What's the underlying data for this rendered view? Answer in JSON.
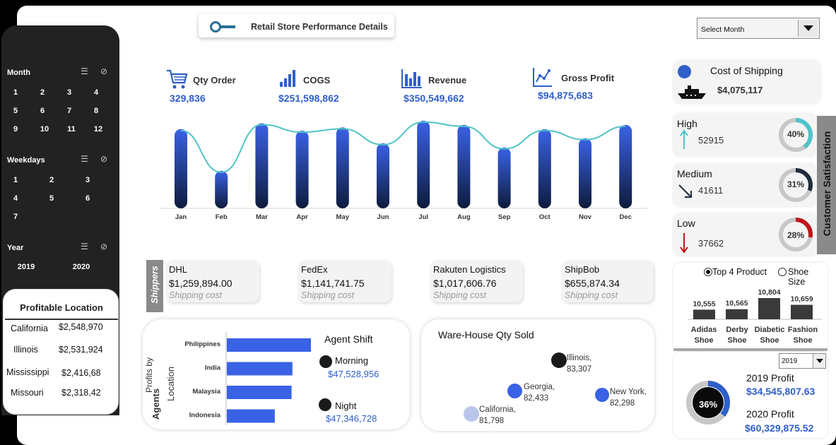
{
  "header": {
    "title": "Retail Store Performance Details",
    "month_select": "Select Month"
  },
  "slicers": {
    "month": {
      "label": "Month",
      "items": [
        "1",
        "2",
        "3",
        "4",
        "5",
        "6",
        "7",
        "8",
        "9",
        "10",
        "11",
        "12"
      ]
    },
    "weekdays": {
      "label": "Weekdays",
      "items": [
        "1",
        "2",
        "3",
        "4",
        "5",
        "6",
        "7"
      ]
    },
    "year": {
      "label": "Year",
      "items": [
        "2019",
        "2020"
      ]
    }
  },
  "profitable_location": {
    "title": "Profitable Location",
    "rows": [
      {
        "name": "California",
        "value": "$2,548,970"
      },
      {
        "name": "Illinois",
        "value": "$2,531,924"
      },
      {
        "name": "Mississippi",
        "value": "$2,416,68"
      },
      {
        "name": "Missouri",
        "value": "$2,318,42"
      }
    ]
  },
  "kpis": {
    "qty": {
      "label": "Qty Order",
      "value": "329,836",
      "icon": "cart-icon"
    },
    "cogs": {
      "label": "COGS",
      "value": "$251,598,862",
      "icon": "bar-chart-icon"
    },
    "revenue": {
      "label": "Revenue",
      "value": "$350,549,662",
      "icon": "column-chart-icon"
    },
    "gross": {
      "label": "Gross Profit",
      "value": "$94,875,683",
      "icon": "line-chart-icon"
    }
  },
  "chart_data": [
    {
      "type": "bar",
      "categories": [
        "Jan",
        "Feb",
        "Mar",
        "Apr",
        "May",
        "Jun",
        "Jul",
        "Aug",
        "Sep",
        "Oct",
        "Nov",
        "Dec"
      ],
      "series": [
        {
          "values": [
            95,
            45,
            102,
            93,
            97,
            78,
            105,
            100,
            73,
            95,
            84,
            100
          ]
        },
        {
          "values": [
            95,
            45,
            102,
            93,
            97,
            78,
            105,
            100,
            73,
            95,
            84,
            100
          ]
        }
      ],
      "colors": {
        "bar_top": "#3a62e6",
        "bar_bottom": "#0d1b3c",
        "line": "#4fc3c8"
      }
    },
    {
      "type": "bar",
      "title": "Agent Shift",
      "ylabel": "Profits by Agents Location",
      "categories": [
        "Philippines",
        "India",
        "Malaysia",
        "Indonesia"
      ],
      "values": [
        100,
        78,
        77,
        57
      ]
    },
    {
      "type": "bar",
      "categories": [
        "Adidas Shoe",
        "Derby Shoe",
        "Diabetic Shoe",
        "Fashion Shoe"
      ],
      "values": [
        10555,
        10565,
        10804,
        10659
      ],
      "labels": [
        "10,555",
        "10,565",
        "10,804",
        "10,659"
      ]
    },
    {
      "type": "scatter",
      "title": "Ware-House Qty Sold",
      "points": [
        {
          "name": "Illinois",
          "label": "83,307",
          "value": 83307
        },
        {
          "name": "Georgia",
          "label": "82,433",
          "value": 82433
        },
        {
          "name": "New York",
          "label": "82,298",
          "value": 82298
        },
        {
          "name": "California",
          "label": "81,798",
          "value": 81798
        }
      ]
    }
  ],
  "shippers": {
    "label": "Shippers",
    "items": [
      {
        "name": "DHL",
        "amount": "$1,259,894.00",
        "sub": "Shipping cost"
      },
      {
        "name": "FedEx",
        "amount": "$1,141,741.75",
        "sub": "Shipping cost"
      },
      {
        "name": "Rakuten Logistics",
        "amount": "$1,017,606.76",
        "sub": "Shipping cost"
      },
      {
        "name": "ShipBob",
        "amount": "$655,874.34",
        "sub": "Shipping cost"
      }
    ]
  },
  "agents": {
    "axis_title_1": "Profits by",
    "axis_title_2": "Agents",
    "axis_title_3": "Location",
    "shift_title": "Agent Shift",
    "morning": {
      "label": "Morning",
      "value": "$47,528,956"
    },
    "night": {
      "label": "Night",
      "value": "$47,346,728"
    }
  },
  "shipping_cost": {
    "label": "Cost of Shipping",
    "value": "$4,075,117"
  },
  "satisfaction": {
    "title": "Customer Satisfaction",
    "items": [
      {
        "label": "High",
        "count": "52915",
        "pct": "40%",
        "fraction": 0.4,
        "color": "#4fc3c8"
      },
      {
        "label": "Medium",
        "count": "41611",
        "pct": "31%",
        "fraction": 0.31,
        "color": "#1f2d3d"
      },
      {
        "label": "Low",
        "count": "37662",
        "pct": "28%",
        "fraction": 0.28,
        "color": "#c0161c"
      }
    ]
  },
  "product_toggle": {
    "option_a": "Top 4 Product",
    "option_b": "Shoe Size"
  },
  "profit": {
    "year_select": "2019",
    "pct": "36%",
    "fraction": 0.36,
    "y2019_label": "2019 Profit",
    "y2019_value": "$34,545,807.63",
    "y2020_label": "2020 Profit",
    "y2020_value": "$60,329,875.52"
  }
}
